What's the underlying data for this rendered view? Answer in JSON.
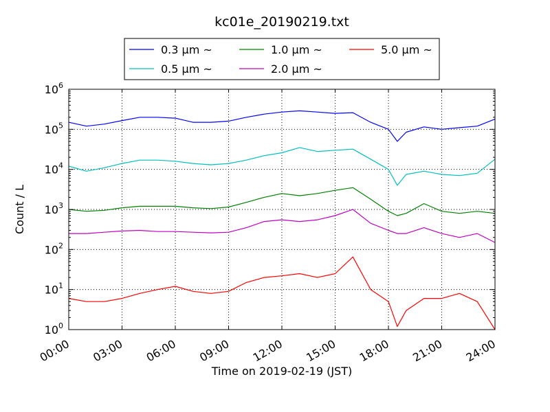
{
  "chart_data": {
    "type": "line",
    "title": "kc01e_20190219.txt",
    "xlabel": "Time on 2019-02-19 (JST)",
    "ylabel": "Count / L",
    "yscale": "log",
    "ylim": [
      1,
      1000000
    ],
    "xlim": [
      "00:00",
      "24:00"
    ],
    "x_tick_labels": [
      "00:00",
      "03:00",
      "06:00",
      "09:00",
      "12:00",
      "15:00",
      "18:00",
      "21:00",
      "24:00"
    ],
    "y_tick_labels": [
      {
        "base": "10",
        "exp": "0"
      },
      {
        "base": "10",
        "exp": "1"
      },
      {
        "base": "10",
        "exp": "2"
      },
      {
        "base": "10",
        "exp": "3"
      },
      {
        "base": "10",
        "exp": "4"
      },
      {
        "base": "10",
        "exp": "5"
      },
      {
        "base": "10",
        "exp": "6"
      }
    ],
    "grid": true,
    "legend_position": "top",
    "x": [
      "00:00",
      "01:00",
      "02:00",
      "03:00",
      "04:00",
      "05:00",
      "06:00",
      "07:00",
      "08:00",
      "09:00",
      "10:00",
      "11:00",
      "12:00",
      "13:00",
      "14:00",
      "15:00",
      "16:00",
      "17:00",
      "18:00",
      "18:30",
      "19:00",
      "20:00",
      "21:00",
      "22:00",
      "23:00",
      "24:00"
    ],
    "series": [
      {
        "name": "0.3 μm ~",
        "color": "#0000ff",
        "values": [
          150000,
          120000,
          135000,
          165000,
          200000,
          200000,
          190000,
          150000,
          150000,
          160000,
          200000,
          240000,
          270000,
          290000,
          270000,
          250000,
          260000,
          150000,
          100000,
          50000,
          85000,
          115000,
          100000,
          110000,
          120000,
          180000
        ]
      },
      {
        "name": "0.5 μm ~",
        "color": "#00bfbf",
        "values": [
          12000,
          9000,
          11000,
          14000,
          17000,
          17000,
          16000,
          14000,
          13000,
          14000,
          17000,
          22000,
          26000,
          35000,
          28000,
          30000,
          32000,
          18000,
          10000,
          4000,
          7500,
          9000,
          7500,
          7000,
          8000,
          18000
        ]
      },
      {
        "name": "1.0 μm ~",
        "color": "#008000",
        "values": [
          1000,
          900,
          950,
          1100,
          1200,
          1200,
          1200,
          1100,
          1050,
          1150,
          1500,
          2000,
          2500,
          2200,
          2500,
          3000,
          3500,
          1800,
          900,
          700,
          800,
          1400,
          900,
          800,
          900,
          800
        ]
      },
      {
        "name": "2.0 μm ~",
        "color": "#bf00bf",
        "values": [
          250,
          250,
          270,
          290,
          300,
          280,
          280,
          270,
          260,
          270,
          350,
          500,
          550,
          500,
          550,
          700,
          1000,
          450,
          300,
          250,
          250,
          350,
          250,
          200,
          250,
          150
        ]
      },
      {
        "name": "5.0 μm ~",
        "color": "#ff0000",
        "values": [
          6,
          5,
          5,
          6,
          8,
          10,
          12,
          9,
          8,
          9,
          15,
          20,
          22,
          25,
          20,
          25,
          65,
          10,
          5,
          1.2,
          3,
          6,
          6,
          8,
          5,
          1
        ]
      }
    ]
  }
}
